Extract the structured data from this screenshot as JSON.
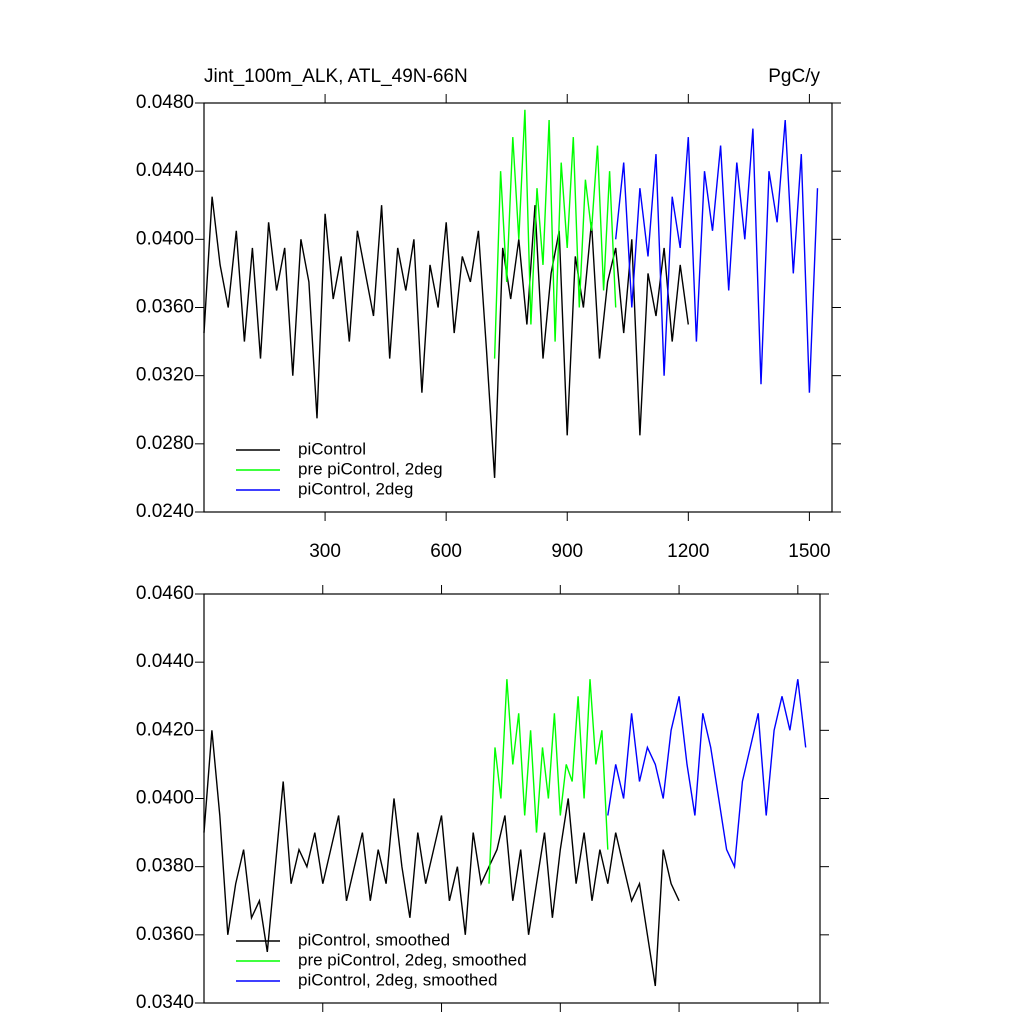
{
  "chart_data": [
    {
      "type": "line",
      "title": "Jint_100m_ALK, ATL_49N-66N",
      "units_label": "PgC/y",
      "xlim": [
        0,
        1556
      ],
      "xticks": [
        300,
        600,
        900,
        1200,
        1500
      ],
      "xtick_labels": true,
      "ylim": [
        0.024,
        0.048
      ],
      "yticks": [
        {
          "value": 0.024,
          "label": "0.0240"
        },
        {
          "value": 0.028,
          "label": "0.0280"
        },
        {
          "value": 0.032,
          "label": "0.0320"
        },
        {
          "value": 0.036,
          "label": "0.0360"
        },
        {
          "value": 0.04,
          "label": "0.0400"
        },
        {
          "value": 0.044,
          "label": "0.0440"
        },
        {
          "value": 0.048,
          "label": "0.0480"
        }
      ],
      "legend": "lower left",
      "series": [
        {
          "name": "piControl",
          "color": "#000000",
          "x": [
            0,
            20,
            40,
            60,
            80,
            100,
            120,
            140,
            160,
            180,
            200,
            220,
            240,
            260,
            280,
            300,
            320,
            340,
            360,
            380,
            400,
            420,
            440,
            460,
            480,
            500,
            520,
            540,
            560,
            580,
            600,
            620,
            640,
            660,
            680,
            700,
            720,
            740,
            760,
            780,
            800,
            820,
            840,
            860,
            880,
            900,
            920,
            940,
            960,
            980,
            1000,
            1020,
            1040,
            1060,
            1080,
            1100,
            1120,
            1140,
            1160,
            1180,
            1200
          ],
          "values": [
            0.0345,
            0.0425,
            0.0385,
            0.036,
            0.0405,
            0.034,
            0.0395,
            0.033,
            0.041,
            0.037,
            0.0395,
            0.032,
            0.04,
            0.0375,
            0.0295,
            0.0415,
            0.0365,
            0.039,
            0.034,
            0.0405,
            0.038,
            0.0355,
            0.042,
            0.033,
            0.0395,
            0.037,
            0.04,
            0.031,
            0.0385,
            0.036,
            0.041,
            0.0345,
            0.039,
            0.0375,
            0.0405,
            0.0335,
            0.026,
            0.0395,
            0.0365,
            0.04,
            0.035,
            0.042,
            0.033,
            0.038,
            0.0405,
            0.0285,
            0.039,
            0.036,
            0.041,
            0.033,
            0.0375,
            0.0395,
            0.0345,
            0.04,
            0.0285,
            0.038,
            0.0355,
            0.0395,
            0.034,
            0.0385,
            0.035
          ]
        },
        {
          "name": "pre piControl, 2deg",
          "color": "#00ff00",
          "x": [
            720,
            735,
            750,
            765,
            780,
            795,
            810,
            825,
            840,
            855,
            870,
            885,
            900,
            915,
            930,
            945,
            960,
            975,
            990,
            1005,
            1020
          ],
          "values": [
            0.033,
            0.044,
            0.0375,
            0.046,
            0.04,
            0.0476,
            0.035,
            0.043,
            0.0385,
            0.047,
            0.034,
            0.0445,
            0.0395,
            0.046,
            0.036,
            0.0435,
            0.0405,
            0.0455,
            0.037,
            0.044,
            0.036
          ]
        },
        {
          "name": "piControl, 2deg",
          "color": "#0000ff",
          "x": [
            1020,
            1040,
            1060,
            1080,
            1100,
            1120,
            1140,
            1160,
            1180,
            1200,
            1220,
            1240,
            1260,
            1280,
            1300,
            1320,
            1340,
            1360,
            1380,
            1400,
            1420,
            1440,
            1460,
            1480,
            1500,
            1520
          ],
          "values": [
            0.04,
            0.0445,
            0.036,
            0.043,
            0.039,
            0.045,
            0.032,
            0.0425,
            0.0395,
            0.046,
            0.034,
            0.044,
            0.0405,
            0.0455,
            0.037,
            0.0445,
            0.04,
            0.0465,
            0.0315,
            0.044,
            0.041,
            0.047,
            0.038,
            0.045,
            0.031,
            0.043
          ]
        }
      ]
    },
    {
      "type": "line",
      "xlim": [
        0,
        1556
      ],
      "xticks": [
        300,
        600,
        900,
        1200,
        1500
      ],
      "xtick_labels": false,
      "ylim": [
        0.034,
        0.046
      ],
      "yticks": [
        {
          "value": 0.034,
          "label": "0.0340"
        },
        {
          "value": 0.036,
          "label": "0.0360"
        },
        {
          "value": 0.038,
          "label": "0.0380"
        },
        {
          "value": 0.04,
          "label": "0.0400"
        },
        {
          "value": 0.042,
          "label": "0.0420"
        },
        {
          "value": 0.044,
          "label": "0.0440"
        },
        {
          "value": 0.046,
          "label": "0.0460"
        }
      ],
      "legend": "lower left",
      "series": [
        {
          "name": "piControl, smoothed",
          "color": "#000000",
          "x": [
            0,
            20,
            40,
            60,
            80,
            100,
            120,
            140,
            160,
            180,
            200,
            220,
            240,
            260,
            280,
            300,
            320,
            340,
            360,
            380,
            400,
            420,
            440,
            460,
            480,
            500,
            520,
            540,
            560,
            580,
            600,
            620,
            640,
            660,
            680,
            700,
            720,
            740,
            760,
            780,
            800,
            820,
            840,
            860,
            880,
            900,
            920,
            940,
            960,
            980,
            1000,
            1020,
            1040,
            1060,
            1080,
            1100,
            1120,
            1140,
            1160,
            1180,
            1200
          ],
          "values": [
            0.039,
            0.042,
            0.0395,
            0.036,
            0.0375,
            0.0385,
            0.0365,
            0.037,
            0.0355,
            0.038,
            0.0405,
            0.0375,
            0.0385,
            0.038,
            0.039,
            0.0375,
            0.0385,
            0.0395,
            0.037,
            0.038,
            0.039,
            0.037,
            0.0385,
            0.0375,
            0.04,
            0.038,
            0.0365,
            0.039,
            0.0375,
            0.0385,
            0.0395,
            0.037,
            0.038,
            0.036,
            0.039,
            0.0375,
            0.038,
            0.0385,
            0.0395,
            0.037,
            0.0385,
            0.036,
            0.0375,
            0.039,
            0.0365,
            0.0385,
            0.04,
            0.0375,
            0.039,
            0.037,
            0.0385,
            0.0375,
            0.039,
            0.038,
            0.037,
            0.0375,
            0.036,
            0.0345,
            0.0385,
            0.0375,
            0.037
          ]
        },
        {
          "name": "pre piControl, 2deg, smoothed",
          "color": "#00ff00",
          "x": [
            720,
            735,
            750,
            765,
            780,
            795,
            810,
            825,
            840,
            855,
            870,
            885,
            900,
            915,
            930,
            945,
            960,
            975,
            990,
            1005,
            1020
          ],
          "values": [
            0.0375,
            0.0415,
            0.04,
            0.0435,
            0.041,
            0.0425,
            0.0395,
            0.042,
            0.039,
            0.0415,
            0.04,
            0.0425,
            0.0395,
            0.041,
            0.0405,
            0.043,
            0.04,
            0.0435,
            0.041,
            0.042,
            0.0385
          ]
        },
        {
          "name": "piControl, 2deg, smoothed",
          "color": "#0000ff",
          "x": [
            1020,
            1040,
            1060,
            1080,
            1100,
            1120,
            1140,
            1160,
            1180,
            1200,
            1220,
            1240,
            1260,
            1280,
            1300,
            1320,
            1340,
            1360,
            1380,
            1400,
            1420,
            1440,
            1460,
            1480,
            1500,
            1520
          ],
          "values": [
            0.0395,
            0.041,
            0.04,
            0.0425,
            0.0405,
            0.0415,
            0.041,
            0.04,
            0.042,
            0.043,
            0.041,
            0.0395,
            0.0425,
            0.0415,
            0.04,
            0.0385,
            0.038,
            0.0405,
            0.0415,
            0.0425,
            0.0395,
            0.042,
            0.043,
            0.042,
            0.0435,
            0.0415
          ]
        }
      ]
    }
  ]
}
